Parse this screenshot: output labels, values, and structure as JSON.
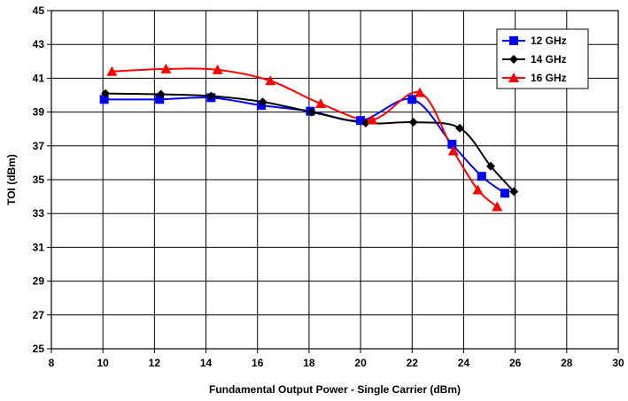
{
  "chart_data": {
    "type": "line",
    "title": "",
    "xlabel": "Fundamental Output Power - Single Carrier (dBm)",
    "ylabel": "TOI (dBm)",
    "xlim": [
      8,
      30
    ],
    "ylim": [
      25,
      45
    ],
    "x_ticks": [
      "8",
      "10",
      "12",
      "14",
      "16",
      "18",
      "20",
      "22",
      "24",
      "26",
      "28",
      "30"
    ],
    "y_ticks": [
      "45",
      "43",
      "41",
      "39",
      "37",
      "35",
      "33",
      "31",
      "29",
      "27",
      "25"
    ],
    "grid": true,
    "legend_position": "top-right",
    "series": [
      {
        "name": "12 GHz",
        "color": "#0000FF",
        "marker": "square",
        "points": [
          [
            10.05,
            39.75
          ],
          [
            12.2,
            39.75
          ],
          [
            14.2,
            39.85
          ],
          [
            16.15,
            39.4
          ],
          [
            18.05,
            39.05
          ],
          [
            20.0,
            38.5
          ],
          [
            22.0,
            39.75
          ],
          [
            23.55,
            37.1
          ],
          [
            24.7,
            35.2
          ],
          [
            25.6,
            34.2
          ]
        ]
      },
      {
        "name": "14 GHz",
        "color": "#000000",
        "marker": "diamond",
        "points": [
          [
            10.1,
            40.1
          ],
          [
            12.25,
            40.05
          ],
          [
            14.2,
            39.95
          ],
          [
            16.2,
            39.6
          ],
          [
            18.1,
            39.0
          ],
          [
            20.2,
            38.35
          ],
          [
            22.05,
            38.4
          ],
          [
            23.85,
            38.05
          ],
          [
            25.05,
            35.8
          ],
          [
            25.95,
            34.3
          ]
        ]
      },
      {
        "name": "16 GHz",
        "color": "#FF0000",
        "marker": "triangle",
        "points": [
          [
            10.35,
            41.4
          ],
          [
            12.45,
            41.55
          ],
          [
            14.45,
            41.5
          ],
          [
            16.5,
            40.85
          ],
          [
            18.45,
            39.5
          ],
          [
            20.45,
            38.55
          ],
          [
            22.3,
            40.15
          ],
          [
            23.6,
            36.7
          ],
          [
            24.55,
            34.4
          ],
          [
            25.3,
            33.4
          ]
        ]
      }
    ]
  }
}
